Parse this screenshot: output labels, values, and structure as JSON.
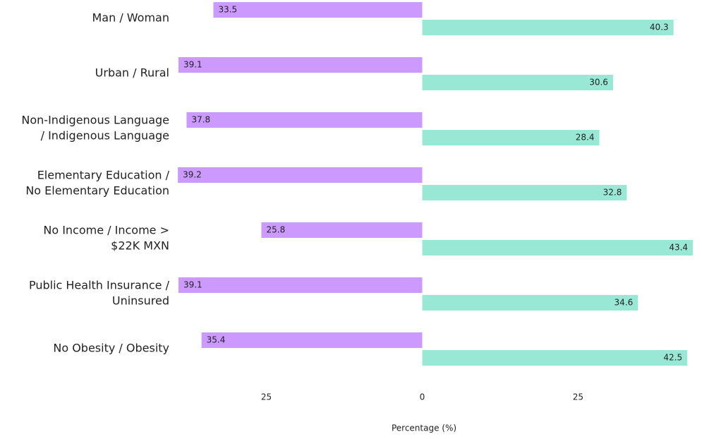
{
  "chart_data": {
    "type": "diverging-bar",
    "categories": [
      [
        "Man / Woman"
      ],
      [
        "Urban / Rural"
      ],
      [
        "Non-Indigenous Language",
        "/ Indigenous Language"
      ],
      [
        "Elementary Education /",
        "No Elementary Education"
      ],
      [
        "No Income / Income >",
        "$22K MXN"
      ],
      [
        "Public Health Insurance /",
        "Uninsured"
      ],
      [
        "No Obesity / Obesity"
      ]
    ],
    "series": [
      {
        "color": "#cc99ff",
        "side": "left",
        "values": [
          33.5,
          39.1,
          37.8,
          39.2,
          25.8,
          39.1,
          35.4
        ]
      },
      {
        "color": "#99e8d6",
        "side": "right",
        "values": [
          40.3,
          30.6,
          28.4,
          32.8,
          43.4,
          34.6,
          42.5
        ]
      }
    ],
    "xlim": [
      -40,
      44.3
    ],
    "xticks": [
      {
        "value": -25,
        "label": "25"
      },
      0,
      25
    ],
    "xlabel": "Percentage (%)"
  }
}
